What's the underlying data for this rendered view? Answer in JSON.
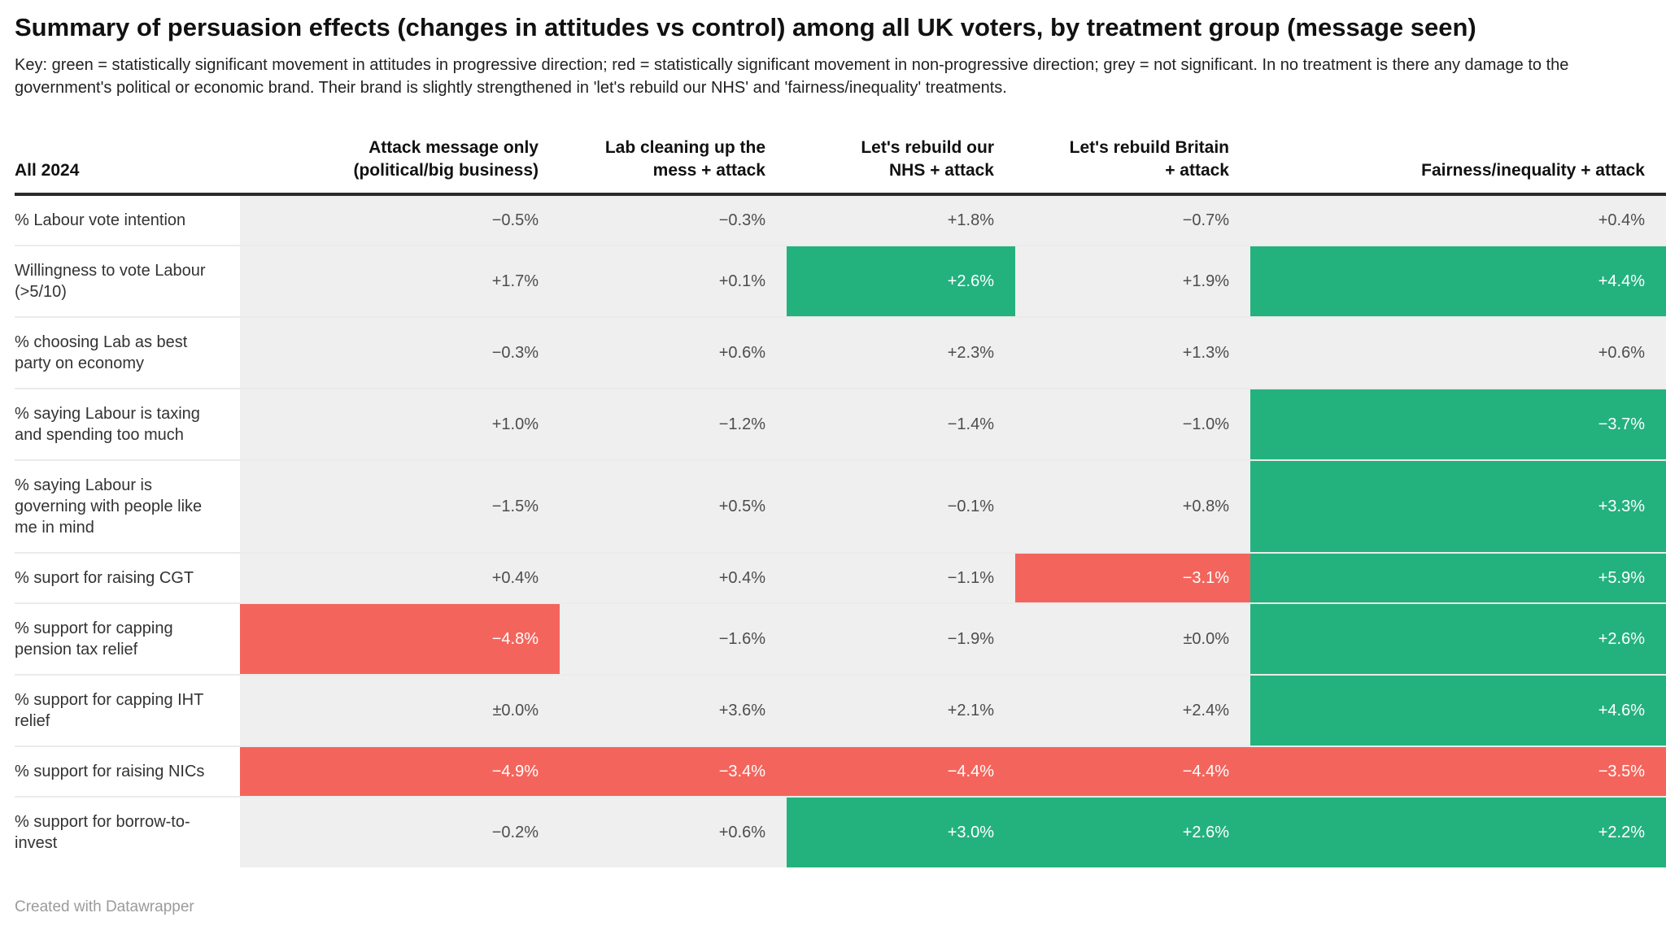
{
  "header": {
    "title": "Summary of persuasion effects (changes in attitudes vs control) among all UK voters, by treatment group (message seen)",
    "key": "Key: green = statistically significant movement in attitudes in progressive direction; red = statistically significant movement in non-progressive direction; grey = not significant. In no treatment is there any damage to the government's political or economic brand. Their brand is slightly strengthened in 'let's rebuild our NHS' and 'fairness/inequality' treatments."
  },
  "colors": {
    "green": "#23b27e",
    "red": "#f3655c",
    "grey": "#efefef",
    "header_rule": "#2b2b2b"
  },
  "chart_data": {
    "type": "table",
    "title": "Summary of persuasion effects (changes in attitudes vs control) among all UK voters, by treatment group (message seen)",
    "legend": {
      "green": "statistically significant movement in attitudes in progressive direction",
      "red": "statistically significant movement in non-progressive direction",
      "grey": "not significant"
    },
    "row_header": "All 2024",
    "columns": [
      "Attack message only\n(political/big business)",
      "Lab cleaning up the\nmess + attack",
      "Let's rebuild our\nNHS + attack",
      "Let's rebuild Britain\n+ attack",
      "Fairness/inequality + attack"
    ],
    "rows": [
      {
        "label": "% Labour vote intention",
        "values": [
          "−0.5%",
          "−0.3%",
          "+1.8%",
          "−0.7%",
          "+0.4%"
        ],
        "colors": [
          "grey",
          "grey",
          "grey",
          "grey",
          "grey"
        ]
      },
      {
        "label": "Willingness to vote Labour (>5/10)",
        "values": [
          "+1.7%",
          "+0.1%",
          "+2.6%",
          "+1.9%",
          "+4.4%"
        ],
        "colors": [
          "grey",
          "grey",
          "green",
          "grey",
          "green"
        ]
      },
      {
        "label": "% choosing Lab as best party on economy",
        "values": [
          "−0.3%",
          "+0.6%",
          "+2.3%",
          "+1.3%",
          "+0.6%"
        ],
        "colors": [
          "grey",
          "grey",
          "grey",
          "grey",
          "grey"
        ]
      },
      {
        "label": "% saying Labour is taxing and spending too much",
        "values": [
          "+1.0%",
          "−1.2%",
          "−1.4%",
          "−1.0%",
          "−3.7%"
        ],
        "colors": [
          "grey",
          "grey",
          "grey",
          "grey",
          "green"
        ]
      },
      {
        "label": "% saying Labour is governing with people like me in mind",
        "values": [
          "−1.5%",
          "+0.5%",
          "−0.1%",
          "+0.8%",
          "+3.3%"
        ],
        "colors": [
          "grey",
          "grey",
          "grey",
          "grey",
          "green"
        ]
      },
      {
        "label": "% suport for raising CGT",
        "values": [
          "+0.4%",
          "+0.4%",
          "−1.1%",
          "−3.1%",
          "+5.9%"
        ],
        "colors": [
          "grey",
          "grey",
          "grey",
          "red",
          "green"
        ]
      },
      {
        "label": "% support for capping pension tax relief",
        "values": [
          "−4.8%",
          "−1.6%",
          "−1.9%",
          "±0.0%",
          "+2.6%"
        ],
        "colors": [
          "red",
          "grey",
          "grey",
          "grey",
          "green"
        ]
      },
      {
        "label": "% support for capping IHT relief",
        "values": [
          "±0.0%",
          "+3.6%",
          "+2.1%",
          "+2.4%",
          "+4.6%"
        ],
        "colors": [
          "grey",
          "grey",
          "grey",
          "grey",
          "green"
        ]
      },
      {
        "label": "% support for raising NICs",
        "values": [
          "−4.9%",
          "−3.4%",
          "−4.4%",
          "−4.4%",
          "−3.5%"
        ],
        "colors": [
          "red",
          "red",
          "red",
          "red",
          "red"
        ]
      },
      {
        "label": "% support for borrow-to-invest",
        "values": [
          "−0.2%",
          "+0.6%",
          "+3.0%",
          "+2.6%",
          "+2.2%"
        ],
        "colors": [
          "grey",
          "grey",
          "green",
          "green",
          "green"
        ]
      }
    ]
  },
  "footer": {
    "credit": "Created with Datawrapper"
  }
}
